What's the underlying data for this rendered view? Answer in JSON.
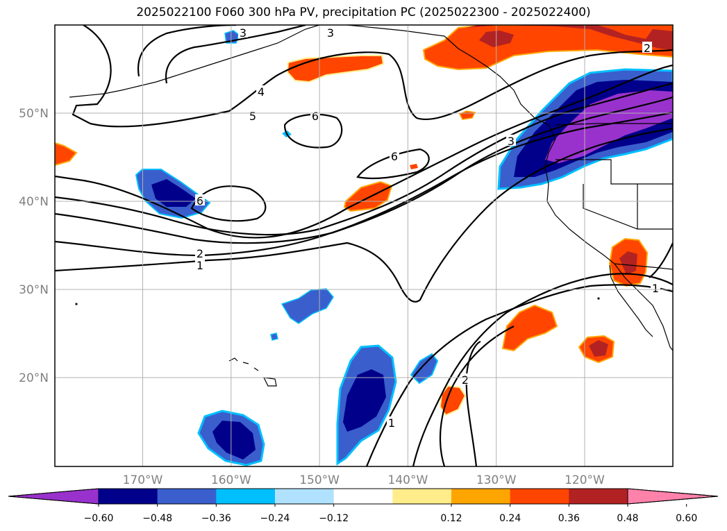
{
  "title": "2025022100 F060 300 hPa PV, precipitation PC (2025022300 - 2025022400)",
  "map": {
    "lat_labels": [
      {
        "text": "50°N",
        "lat": 50
      },
      {
        "text": "40°N",
        "lat": 40
      },
      {
        "text": "30°N",
        "lat": 30
      },
      {
        "text": "20°N",
        "lat": 20
      }
    ],
    "lon_labels": [
      {
        "text": "170°W",
        "lon": -170
      },
      {
        "text": "160°W",
        "lon": -160
      },
      {
        "text": "150°W",
        "lon": -150
      },
      {
        "text": "140°W",
        "lon": -140
      },
      {
        "text": "130°W",
        "lon": -130
      },
      {
        "text": "120°W",
        "lon": -120
      }
    ],
    "contour_labels": [
      "3",
      "3",
      "4",
      "5",
      "6",
      "6",
      "6",
      "3",
      "2",
      "1",
      "2",
      "1",
      "1",
      "2"
    ]
  },
  "colorbar": {
    "ticks": [
      "−0.60",
      "−0.48",
      "−0.36",
      "−0.24",
      "−0.12",
      "0.12",
      "0.24",
      "0.36",
      "0.48",
      "0.60"
    ],
    "colors": [
      "#9932cc",
      "#00008b",
      "#3a5fcd",
      "#00bfff",
      "#b0e2ff",
      "#ffffff",
      "#ffec8b",
      "#ffa500",
      "#ff4500",
      "#b22222",
      "#ff82ab"
    ]
  }
}
